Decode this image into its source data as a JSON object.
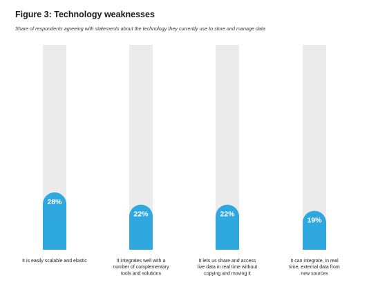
{
  "chart_data": {
    "type": "bar",
    "title": "Figure 3: Technology weaknesses",
    "subtitle": "Share of respondents agreeing with statements about the technology they currently use to store and manage data",
    "categories": [
      [
        "It is easily scalable and elastic"
      ],
      [
        "It integrates well with a",
        "number of complementary",
        "tools and solutions"
      ],
      [
        "It lets us share and access",
        "live data in real time without",
        "copying and moving it"
      ],
      [
        "It can integrate, in real",
        "time, external data from",
        "new sources"
      ]
    ],
    "values": [
      28,
      22,
      22,
      19
    ],
    "value_labels": [
      "28%",
      "22%",
      "22%",
      "19%"
    ],
    "ylim": [
      0,
      100
    ],
    "colors": {
      "bar": "#2ea8df",
      "track": "#ebebeb",
      "value_text": "#ffffff"
    }
  }
}
